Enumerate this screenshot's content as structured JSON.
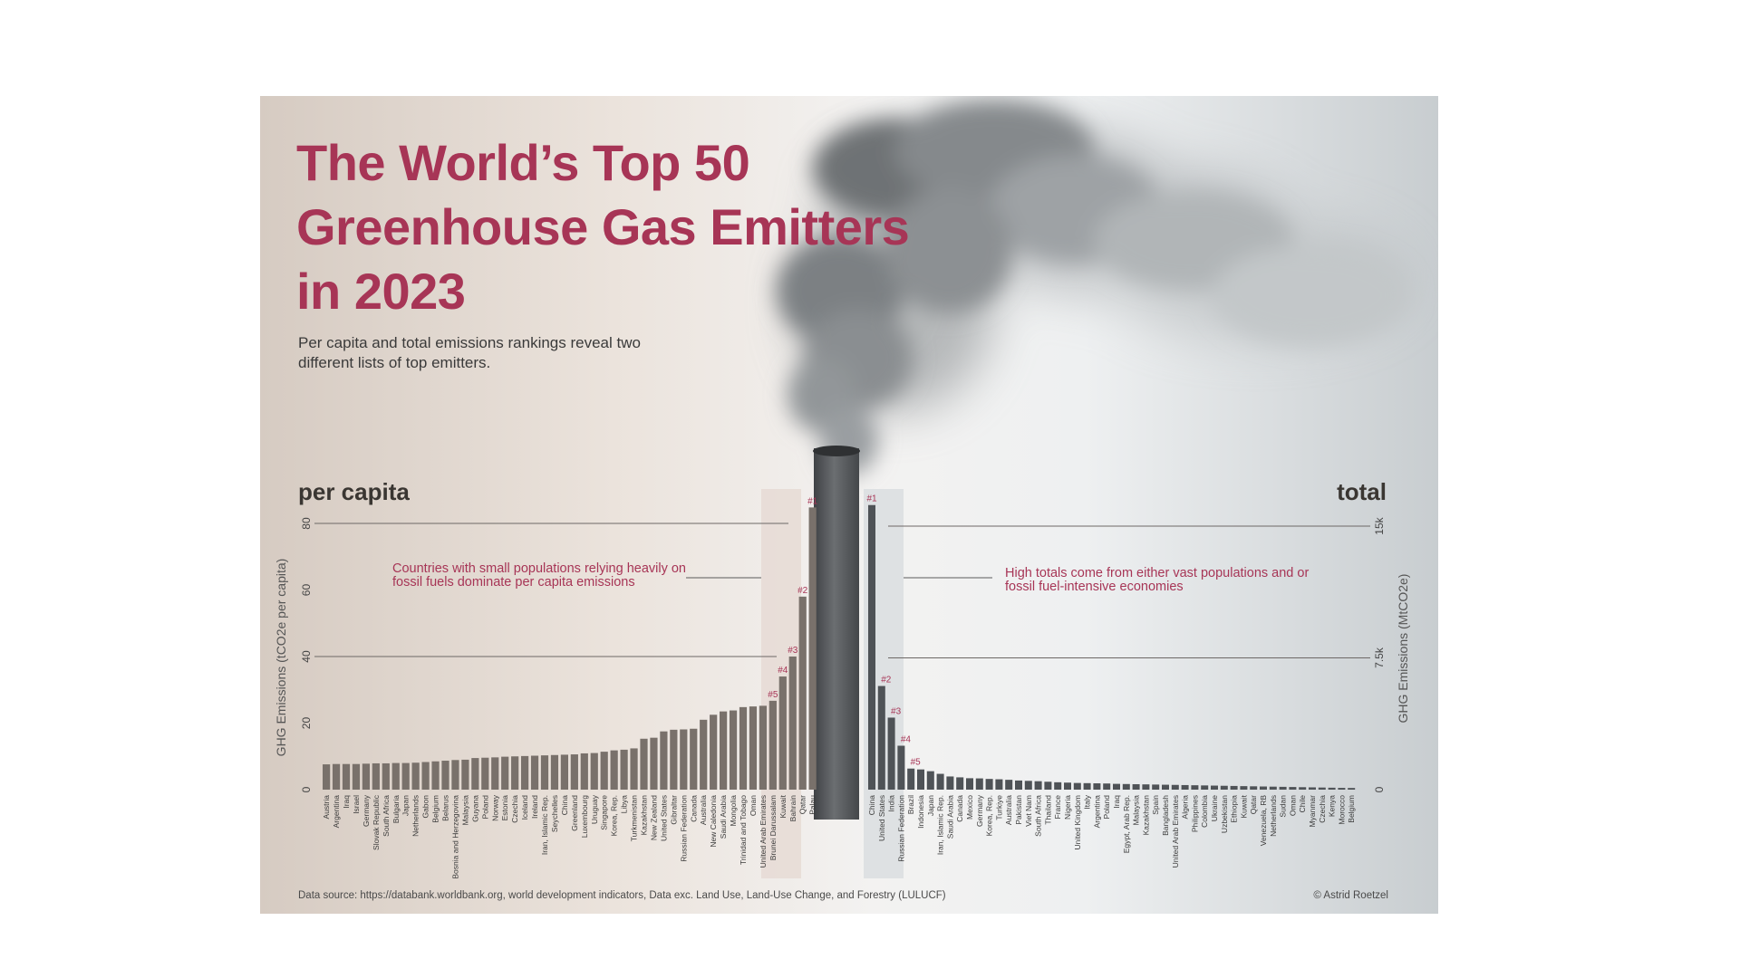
{
  "title_lines": [
    "The World’s Top 50",
    "Greenhouse Gas Emitters",
    "in 2023"
  ],
  "subtitle": "Per capita and total emissions rankings reveal two different lists of top emitters.",
  "section_left": "per capita",
  "section_right": "total",
  "annotation_left": "Countries with small populations relying heavily on fossil fuels dominate per capita emissions",
  "annotation_right": "High totals come from either vast populations and or fossil fuel-intensive economies",
  "source": "Data source: https://databank.worldbank.org, world development indicators, Data exc. Land Use, Land-Use Change, and Forestry (LULUCF)",
  "credit": "© Astrid Roetzel",
  "colors": {
    "accent": "#a73556",
    "bar_per_capita": "#79716b",
    "bar_total": "#4f5357",
    "chimney": "#56595c",
    "highlight_panel": "#e7dcd6"
  },
  "chart_data": [
    {
      "type": "bar",
      "name": "per capita",
      "ylabel": "GHG Emissions (tCO2e per capita)",
      "ylim": [
        0,
        90
      ],
      "yticks": [
        0,
        20,
        40,
        60,
        80
      ],
      "gridlines_at": [
        40,
        80
      ],
      "categories": [
        "Austria",
        "Argentina",
        "Iraq",
        "Israel",
        "Germany",
        "Slovak Republic",
        "South Africa",
        "Bulgaria",
        "Japan",
        "Netherlands",
        "Gabon",
        "Belgium",
        "Belarus",
        "Bosnia and Herzegovina",
        "Malaysia",
        "Guyana",
        "Poland",
        "Norway",
        "Estonia",
        "Czechia",
        "Iceland",
        "Ireland",
        "Iran, Islamic Rep.",
        "Seychelles",
        "China",
        "Greenland",
        "Luxembourg",
        "Uruguay",
        "Singapore",
        "Korea, Rep.",
        "Libya",
        "Turkmenistan",
        "Kazakhstan",
        "New Zealand",
        "United States",
        "Gibraltar",
        "Russian Federation",
        "Canada",
        "Australia",
        "New Caledonia",
        "Saudi Arabia",
        "Mongolia",
        "Trinidad and Tobago",
        "Oman",
        "United Arab Emirates",
        "Brunei Darussalam",
        "Kuwait",
        "Bahrain",
        "Qatar",
        "Palau"
      ],
      "values": [
        7.6,
        7.7,
        7.7,
        7.7,
        7.8,
        7.9,
        7.9,
        8.0,
        8.0,
        8.1,
        8.3,
        8.5,
        8.7,
        8.9,
        9.0,
        9.5,
        9.6,
        9.7,
        9.9,
        10.0,
        10.1,
        10.2,
        10.3,
        10.4,
        10.5,
        10.6,
        10.9,
        11.0,
        11.4,
        11.8,
        12.0,
        12.4,
        15.3,
        15.6,
        17.5,
        18.0,
        18.1,
        18.3,
        21.0,
        22.5,
        23.5,
        23.8,
        24.8,
        25.0,
        25.2,
        26.7,
        34.0,
        40.0,
        58.0,
        84.8
      ],
      "rank_labels": [
        "#1",
        "#2",
        "#3",
        "#4",
        "#5"
      ]
    },
    {
      "type": "bar",
      "name": "total",
      "ylabel": "GHG Emissions (MtCO2e)",
      "ylim": [
        0,
        17000
      ],
      "ytick_labels": [
        "0",
        "7.5k",
        "15k"
      ],
      "ytick_values": [
        0,
        7500,
        15000
      ],
      "gridlines_at": [
        7500,
        15000
      ],
      "categories": [
        "China",
        "United States",
        "India",
        "Russian Federation",
        "Brazil",
        "Indonesia",
        "Japan",
        "Iran, Islamic Rep.",
        "Saudi Arabia",
        "Canada",
        "Mexico",
        "Germany",
        "Korea, Rep.",
        "Turkiye",
        "Australia",
        "Pakistan",
        "Viet Nam",
        "South Africa",
        "Thailand",
        "France",
        "Nigeria",
        "United Kingdom",
        "Italy",
        "Argentina",
        "Poland",
        "Iraq",
        "Egypt, Arab Rep.",
        "Malaysia",
        "Kazakhstan",
        "Spain",
        "Bangladesh",
        "United Arab Emirates",
        "Algeria",
        "Philippines",
        "Colombia",
        "Ukraine",
        "Uzbekistan",
        "Ethiopia",
        "Kuwait",
        "Qatar",
        "Venezuela, RB",
        "Netherlands",
        "Sudan",
        "Oman",
        "Chile",
        "Myanmar",
        "Czechia",
        "Kenya",
        "Morocco",
        "Belgium"
      ],
      "values": [
        16200,
        5900,
        4100,
        2500,
        1200,
        1150,
        1050,
        900,
        750,
        700,
        650,
        640,
        610,
        590,
        560,
        520,
        500,
        480,
        450,
        420,
        400,
        380,
        370,
        360,
        350,
        330,
        320,
        310,
        300,
        290,
        280,
        270,
        260,
        250,
        240,
        230,
        220,
        210,
        200,
        190,
        180,
        170,
        160,
        150,
        140,
        130,
        120,
        110,
        100,
        95
      ],
      "rank_labels": [
        "#1",
        "#2",
        "#3",
        "#4",
        "#5"
      ]
    }
  ]
}
